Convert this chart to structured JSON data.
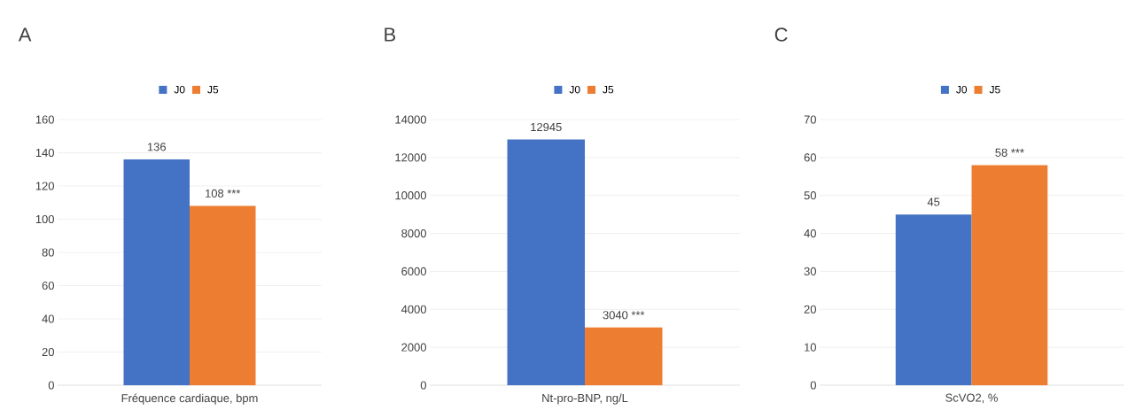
{
  "chart_data": [
    {
      "type": "bar",
      "title": "A",
      "xlabel": "Fréquence cardiaque, bpm",
      "categories": [
        null
      ],
      "series": [
        {
          "name": "J0",
          "color": "#4472c4",
          "values": [
            136
          ],
          "value_labels": [
            "136"
          ]
        },
        {
          "name": "J5",
          "color": "#ed7d31",
          "values": [
            108
          ],
          "value_labels": [
            "108 ***"
          ]
        }
      ],
      "ylim": [
        0,
        160
      ],
      "yticks": [
        0,
        20,
        40,
        60,
        80,
        100,
        120,
        140,
        160
      ],
      "grid": "y",
      "legend": "top"
    },
    {
      "type": "bar",
      "title": "B",
      "xlabel": "Nt-pro-BNP, ng/L",
      "categories": [
        null
      ],
      "series": [
        {
          "name": "J0",
          "color": "#4472c4",
          "values": [
            12945
          ],
          "value_labels": [
            "12945"
          ]
        },
        {
          "name": "J5",
          "color": "#ed7d31",
          "values": [
            3040
          ],
          "value_labels": [
            "3040 ***"
          ]
        }
      ],
      "ylim": [
        0,
        14000
      ],
      "yticks": [
        0,
        2000,
        4000,
        6000,
        8000,
        10000,
        12000,
        14000
      ],
      "grid": "y",
      "legend": "top"
    },
    {
      "type": "bar",
      "title": "C",
      "xlabel": "ScVO2, %",
      "categories": [
        null
      ],
      "series": [
        {
          "name": "J0",
          "color": "#4472c4",
          "values": [
            45
          ],
          "value_labels": [
            "45"
          ]
        },
        {
          "name": "J5",
          "color": "#ed7d31",
          "values": [
            58
          ],
          "value_labels": [
            "58 ***"
          ]
        }
      ],
      "ylim": [
        0,
        70
      ],
      "yticks": [
        0,
        10,
        20,
        30,
        40,
        50,
        60,
        70
      ],
      "grid": "y",
      "legend": "top"
    }
  ]
}
